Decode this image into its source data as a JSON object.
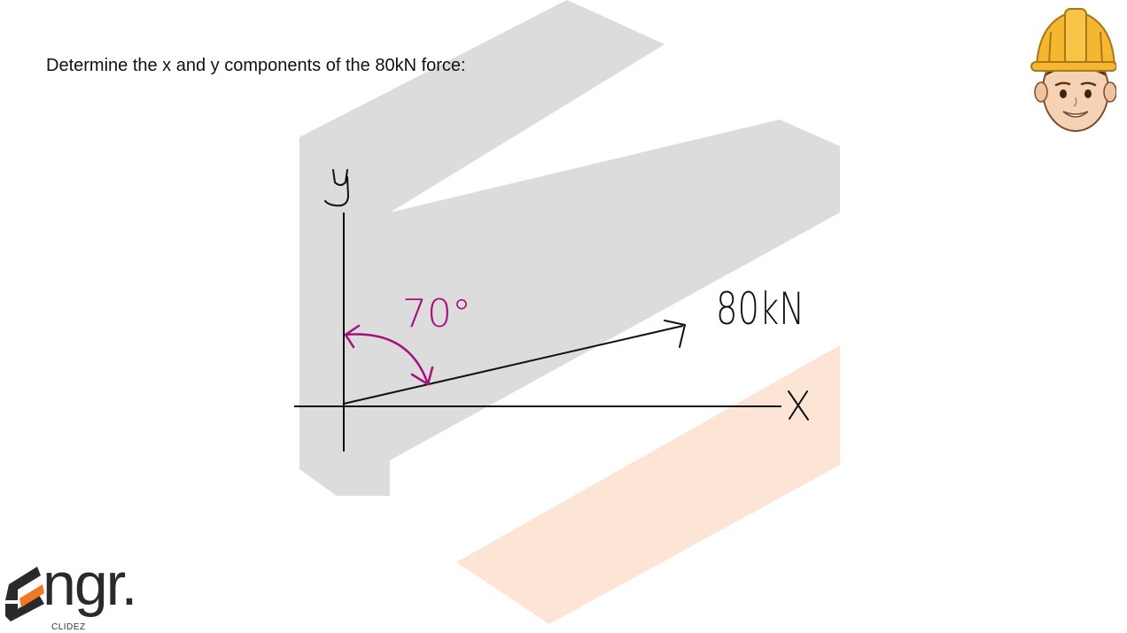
{
  "slide": {
    "question": "Determine the x and y components of the 80kN force:"
  },
  "diagram": {
    "y_axis_label": "y",
    "x_axis_label": "X",
    "force_label": "80kN",
    "angle_label": "70°",
    "force_magnitude_kN": 80,
    "angle_from_y_axis_deg": 70,
    "colors": {
      "ink": "#111111",
      "angle_annotation": "#a6117e"
    }
  },
  "branding": {
    "logo_text": "ngr.",
    "logo_subtext": "CLIDEZ",
    "mascot_icon": "engineer-mascot-icon",
    "colors": {
      "watermark_gray": "#dcdcdc",
      "watermark_peach": "#fde5d6",
      "logo_orange": "#f07a23",
      "logo_dark": "#2a2a2a",
      "helmet_yellow": "#f5b630"
    }
  }
}
